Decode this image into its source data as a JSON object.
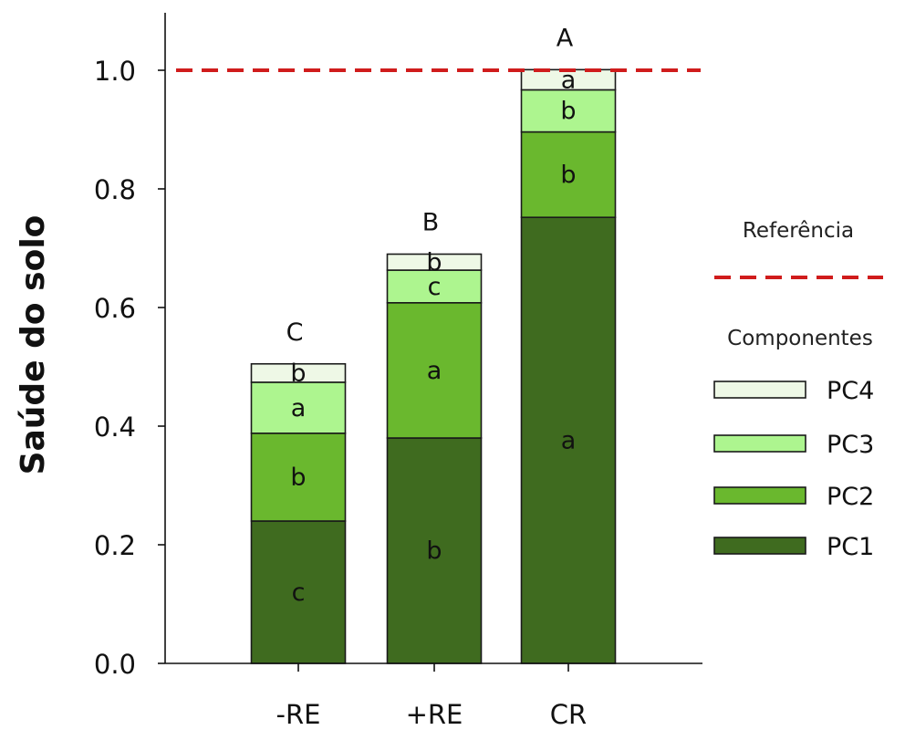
{
  "chart_data": {
    "type": "bar",
    "stacked": true,
    "categories": [
      "-RE",
      "+RE",
      "CR"
    ],
    "ylabel": "Saúde do solo",
    "xlabel": "",
    "ylim": [
      0,
      1.1
    ],
    "yticks": [
      0.0,
      0.2,
      0.4,
      0.6,
      0.8,
      1.0
    ],
    "ytick_labels": [
      "0.0",
      "0.2",
      "0.4",
      "0.6",
      "0.8",
      "1.0"
    ],
    "grid": false,
    "reference_line": {
      "value": 1.0,
      "label": "Referência",
      "color": "#d01c1c",
      "style": "dashed"
    },
    "legend": {
      "title": "Componentes",
      "position": "right"
    },
    "series": [
      {
        "name": "PC1",
        "color": "#3f6b1f",
        "values": [
          0.24,
          0.38,
          0.752
        ],
        "letters": [
          "c",
          "b",
          "a"
        ]
      },
      {
        "name": "PC2",
        "color": "#6ab82e",
        "values": [
          0.148,
          0.228,
          0.144
        ],
        "letters": [
          "b",
          "a",
          "b"
        ]
      },
      {
        "name": "PC3",
        "color": "#adf58f",
        "values": [
          0.086,
          0.055,
          0.071
        ],
        "letters": [
          "a",
          "c",
          "b"
        ]
      },
      {
        "name": "PC4",
        "color": "#eef8e6",
        "values": [
          0.031,
          0.027,
          0.034
        ],
        "letters": [
          "b",
          "b",
          "a"
        ]
      }
    ],
    "totals": [
      0.505,
      0.69,
      1.001
    ],
    "total_letters": [
      "C",
      "B",
      "A"
    ]
  }
}
